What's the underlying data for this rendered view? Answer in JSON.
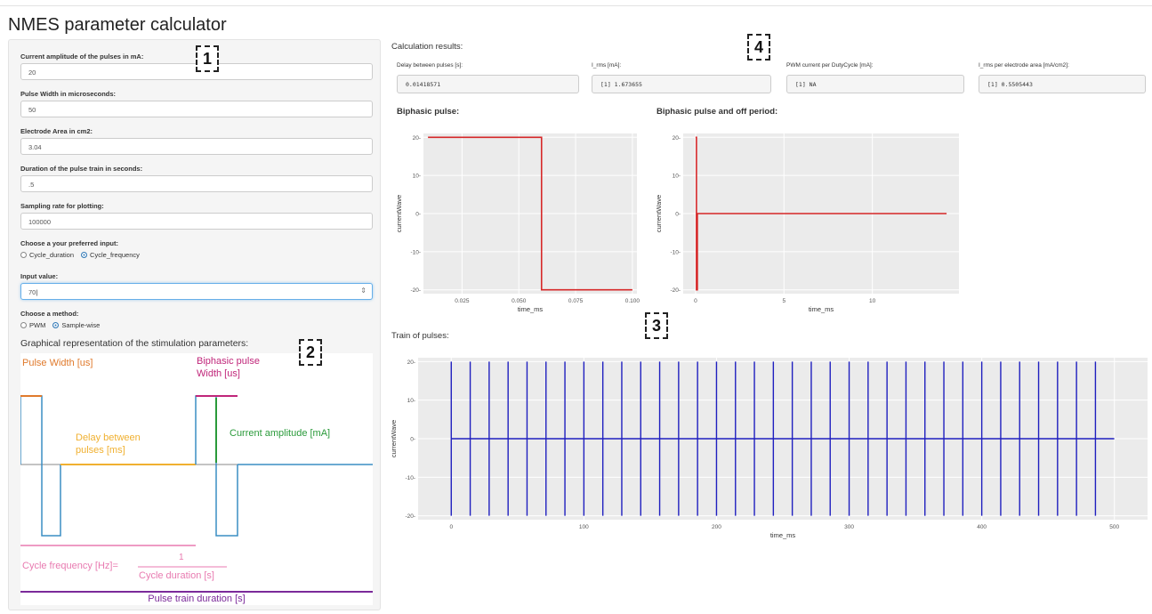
{
  "app": {
    "title": "NMES parameter calculator"
  },
  "sidebar": {
    "fields": [
      {
        "label": "Current amplitude of the pulses in mA:",
        "value": "20"
      },
      {
        "label": "Pulse Width in microseconds:",
        "value": "50"
      },
      {
        "label": "Electrode Area in cm2:",
        "value": "3.04"
      },
      {
        "label": "Duration of the pulse train in seconds:",
        "value": ".5"
      },
      {
        "label": "Sampling rate for plotting:",
        "value": "100000"
      }
    ],
    "input_choice": {
      "label": "Choose a your preferred input:",
      "options": [
        "Cycle_duration",
        "Cycle_frequency"
      ],
      "selected": "Cycle_frequency"
    },
    "input_value": {
      "label": "Input value:",
      "value": "70"
    },
    "method_choice": {
      "label": "Choose a method:",
      "options": [
        "PWM",
        "Sample-wise"
      ],
      "selected": "Sample-wise"
    },
    "graphical": {
      "title": "Graphical representation of the stimulation parameters:",
      "pulse_width": "Pulse Width [us]",
      "biphasic_line1": "Biphasic pulse",
      "biphasic_line2": "Width [us]",
      "delay_line1": "Delay between",
      "delay_line2": "pulses [ms]",
      "current_amplitude": "Current amplitude [mA]",
      "cycle_freq": "Cycle frequency [Hz]=",
      "frac_num": "1",
      "frac_den": "Cycle duration [s]",
      "pulse_train": "Pulse train duration [s]"
    }
  },
  "annotations": [
    "1",
    "2",
    "3",
    "4"
  ],
  "results": {
    "title": "Calculation results:",
    "items": [
      {
        "label": "Delay between pulses [s]:",
        "value": "0.01418571"
      },
      {
        "label": "I_rms [mA]:",
        "value": "[1] 1.673655"
      },
      {
        "label": "PWM current per DutyCycle [mA]:",
        "value": "[1] NA"
      },
      {
        "label": "I_rms per electrode area [mA/cm2]:",
        "value": "[1] 0.5505443"
      }
    ]
  },
  "plots": {
    "biphasic_title": "Biphasic pulse:",
    "biphasic_off_title": "Biphasic pulse and off period:",
    "train_title": "Train of pulses:"
  },
  "chart_data": [
    {
      "type": "line",
      "title": "Biphasic pulse:",
      "xlabel": "time_ms",
      "ylabel": "currentWave",
      "x": [
        0.01,
        0.06,
        0.06,
        0.1
      ],
      "y": [
        20,
        20,
        -20,
        -20
      ],
      "xlim": [
        0.008,
        0.102
      ],
      "ylim": [
        -21,
        21
      ],
      "xticks": [
        "0.025",
        "0.050",
        "0.075",
        "0.100"
      ],
      "yticks": [
        "20-",
        "10-",
        "0-",
        "-10-",
        "-20-"
      ],
      "color": "#d62728",
      "grid": true
    },
    {
      "type": "line",
      "title": "Biphasic pulse and off period:",
      "xlabel": "time_ms",
      "ylabel": "currentWave",
      "x": [
        0,
        0.05,
        0.05,
        0.1,
        0.1,
        14.2
      ],
      "y": [
        20,
        20,
        -20,
        -20,
        0,
        0
      ],
      "xlim": [
        -0.7,
        14.9
      ],
      "ylim": [
        -21,
        21
      ],
      "xticks": [
        "0",
        "5",
        "10"
      ],
      "yticks": [
        "20-",
        "10-",
        "0-",
        "-10-",
        "-20-"
      ],
      "color": "#d62728",
      "grid": true
    },
    {
      "type": "line",
      "title": "Train of pulses:",
      "xlabel": "time_ms",
      "ylabel": "currentWave",
      "pulse_times_ms": [
        0.0,
        14.29,
        28.57,
        42.86,
        57.14,
        71.43,
        85.71,
        100.0,
        114.29,
        128.57,
        142.86,
        157.14,
        171.43,
        185.71,
        200.0,
        214.29,
        228.57,
        242.86,
        257.14,
        271.43,
        285.71,
        300.0,
        314.29,
        328.57,
        342.86,
        357.14,
        371.43,
        385.71,
        400.0,
        414.29,
        428.57,
        442.86,
        457.14,
        471.43,
        485.71
      ],
      "amplitude": 20,
      "xlim": [
        -25,
        525
      ],
      "ylim": [
        -21,
        21
      ],
      "xticks": [
        "0",
        "100",
        "200",
        "300",
        "400",
        "500"
      ],
      "yticks": [
        "20-",
        "10-",
        "0-",
        "-10-",
        "-20-"
      ],
      "color": "#1f1fbf",
      "grid": true
    }
  ]
}
